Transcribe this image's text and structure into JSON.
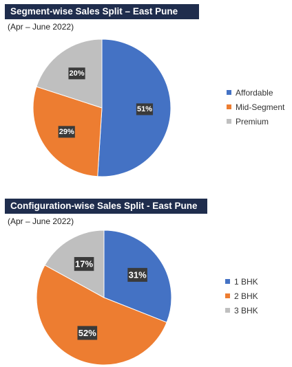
{
  "chart_data": [
    {
      "type": "pie",
      "title": "Segment-wise Sales Split – East Pune",
      "subtitle": "(Apr – June 2022)",
      "categories": [
        "Affordable",
        "Mid-Segment",
        "Premium"
      ],
      "values": [
        51,
        29,
        20
      ],
      "value_labels": [
        "51%",
        "29%",
        "20%"
      ],
      "colors": [
        "#4472c4",
        "#ed7d31",
        "#bfbfbf"
      ],
      "legend_position": "right"
    },
    {
      "type": "pie",
      "title": "Configuration-wise Sales Split - East Pune",
      "subtitle": "(Apr – June 2022)",
      "categories": [
        "1 BHK",
        "2 BHK",
        "3 BHK"
      ],
      "values": [
        31,
        52,
        17
      ],
      "value_labels": [
        "31%",
        "52%",
        "17%"
      ],
      "colors": [
        "#4472c4",
        "#ed7d31",
        "#bfbfbf"
      ],
      "legend_position": "right"
    }
  ]
}
